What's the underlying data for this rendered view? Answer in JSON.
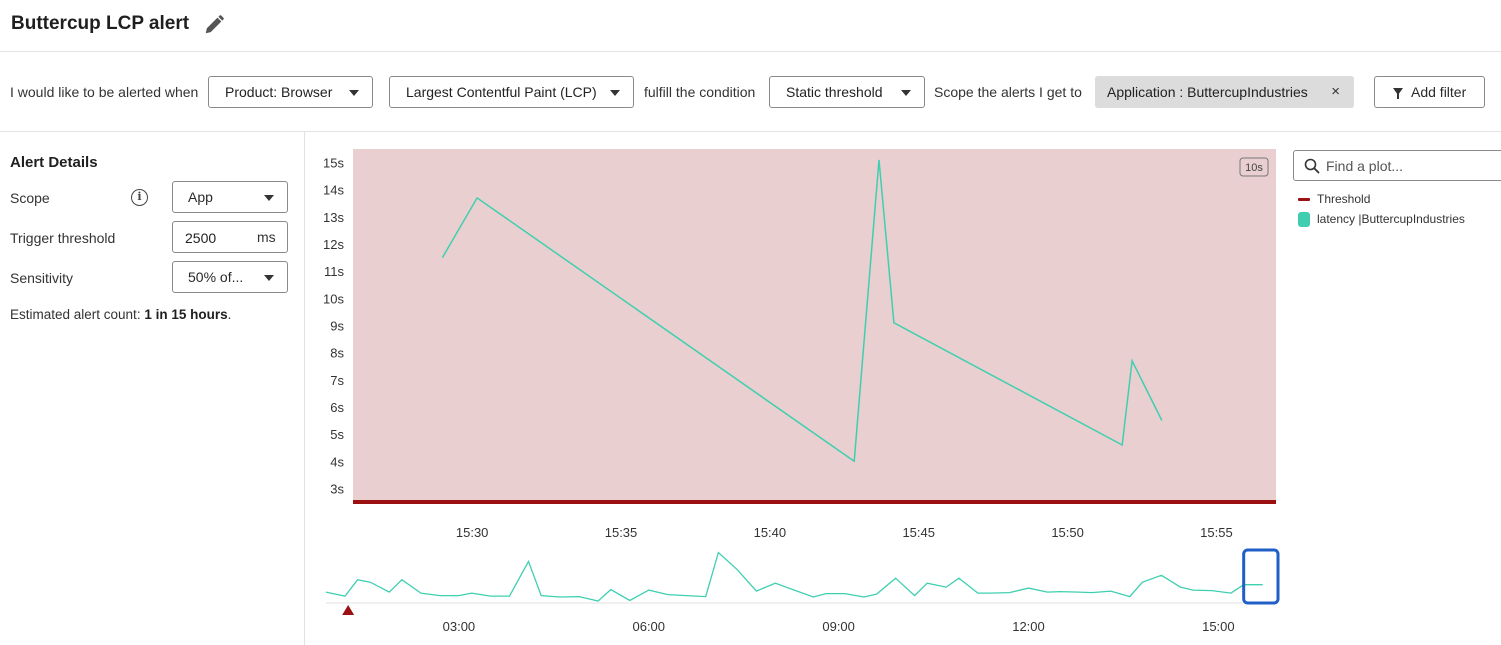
{
  "header": {
    "title": "Buttercup LCP alert",
    "edit_icon": "pencil-icon"
  },
  "condition": {
    "prefix": "I would like to be alerted when",
    "product": "Product: Browser",
    "metric": "Largest Contentful Paint (LCP)",
    "fulfill_text": "fulfill the condition",
    "condition_type": "Static threshold",
    "scope_text": "Scope the alerts I get to",
    "scope_chip": "Application : ButtercupIndustries",
    "scope_chip_close": "×",
    "add_filter": "Add filter"
  },
  "alert_details": {
    "title": "Alert Details",
    "scope_label": "Scope",
    "scope_value": "App",
    "trigger_label": "Trigger threshold",
    "trigger_value": "2500",
    "trigger_unit": "ms",
    "sensitivity_label": "Sensitivity",
    "sensitivity_value": "50% of...",
    "estimate_prefix": "Estimated alert count:",
    "estimate_value": "1 in 15 hours",
    "estimate_suffix": "."
  },
  "legend": {
    "search_placeholder": "Find a plot...",
    "items": [
      {
        "label": "Threshold",
        "color": "#9b1111"
      },
      {
        "label": "latency |ButtercupIndustries",
        "color": "#3fcfb0"
      }
    ]
  },
  "colors": {
    "alert_region": "#e9cfcf",
    "threshold": "#9b1111",
    "series": "#3fcfb0",
    "brush": "#1f5fc7"
  },
  "chart_data": [
    {
      "type": "line",
      "resolution_badge": "10s",
      "y_ticks": [
        "3s",
        "4s",
        "5s",
        "6s",
        "7s",
        "8s",
        "9s",
        "10s",
        "11s",
        "12s",
        "13s",
        "14s",
        "15s"
      ],
      "x_ticks": [
        "15:30",
        "15:35",
        "15:40",
        "15:45",
        "15:50",
        "15:55"
      ],
      "ylim": [
        2.5,
        15.5
      ],
      "xlim_minutes": [
        15.4333,
        15.95
      ],
      "threshold": 2.5,
      "series": [
        {
          "name": "Threshold",
          "x": [],
          "y": []
        },
        {
          "name": "latency |ButtercupIndustries",
          "x": [
            "15:29:00",
            "15:30:10",
            "15:42:50",
            "15:43:40",
            "15:44:10",
            "15:51:50",
            "15:52:10",
            "15:53:10"
          ],
          "y": [
            11.5,
            13.7,
            4.0,
            15.1,
            9.1,
            4.6,
            7.7,
            5.5
          ]
        }
      ]
    },
    {
      "type": "line",
      "role": "overview",
      "x_ticks": [
        "03:00",
        "06:00",
        "09:00",
        "12:00",
        "15:00"
      ],
      "xlim_hours": [
        0.9,
        15.8
      ],
      "brush_range_hours": [
        15.4,
        15.95
      ],
      "alert_marker_hours": 1.25,
      "series": [
        {
          "name": "latency |ButtercupIndustries",
          "x": [
            0.9,
            1.2,
            1.4,
            1.6,
            1.9,
            2.1,
            2.4,
            2.7,
            3.0,
            3.2,
            3.5,
            3.8,
            4.1,
            4.3,
            4.6,
            4.9,
            5.2,
            5.4,
            5.7,
            6.0,
            6.3,
            6.6,
            6.9,
            7.1,
            7.4,
            7.7,
            8.0,
            8.3,
            8.6,
            8.8,
            9.1,
            9.4,
            9.6,
            9.9,
            10.2,
            10.4,
            10.7,
            10.9,
            11.2,
            11.4,
            11.7,
            12.0,
            12.3,
            12.5,
            12.8,
            13.0,
            13.3,
            13.6,
            13.8,
            14.1,
            14.4,
            14.6,
            14.9,
            15.2,
            15.4,
            15.7
          ],
          "y": [
            2.0,
            1.2,
            4.5,
            4.0,
            2.0,
            4.5,
            1.8,
            1.3,
            1.3,
            1.8,
            1.2,
            1.2,
            8.2,
            1.3,
            1.0,
            1.1,
            0.2,
            2.5,
            0.3,
            2.4,
            1.5,
            1.3,
            1.1,
            10.0,
            6.5,
            2.2,
            3.8,
            2.4,
            1.0,
            1.7,
            1.7,
            1.0,
            1.6,
            4.8,
            1.3,
            3.8,
            3.0,
            4.8,
            1.8,
            1.8,
            1.9,
            2.8,
            2.0,
            2.1,
            2.0,
            1.9,
            2.2,
            1.1,
            4.0,
            5.4,
            3.0,
            2.4,
            2.3,
            1.8,
            3.5,
            3.5
          ]
        }
      ]
    }
  ]
}
